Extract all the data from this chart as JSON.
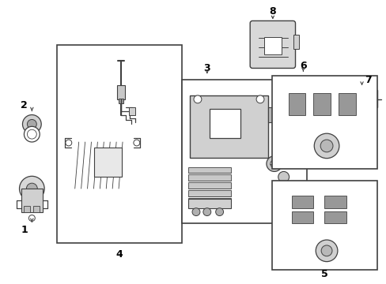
{
  "background_color": "#ffffff",
  "line_color": "#404040",
  "text_color": "#000000",
  "figure_width": 4.89,
  "figure_height": 3.6,
  "dpi": 100
}
